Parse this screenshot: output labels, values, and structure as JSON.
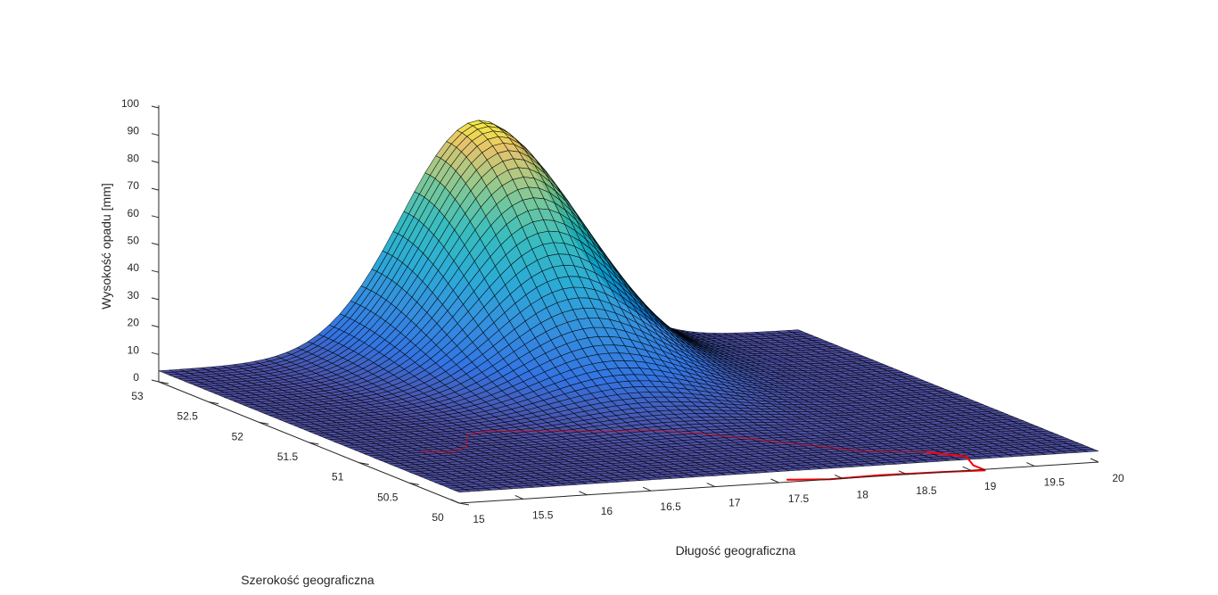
{
  "chart_data": {
    "type": "surface",
    "title": "",
    "xlabel": "Długość geograficzna",
    "ylabel": "Szerokość geograficzna",
    "zlabel": "Wysokość opadu [mm]",
    "xlim": [
      15,
      20
    ],
    "ylim": [
      50,
      53
    ],
    "zlim": [
      0,
      100
    ],
    "x_ticks": [
      "15",
      "15.5",
      "16",
      "16.5",
      "17",
      "17.5",
      "18",
      "18.5",
      "19",
      "19.5",
      "20"
    ],
    "y_ticks": [
      "50",
      "50.5",
      "51",
      "51.5",
      "52",
      "52.5",
      "53"
    ],
    "z_ticks": [
      "0",
      "10",
      "20",
      "30",
      "40",
      "50",
      "60",
      "70",
      "80",
      "90",
      "100"
    ],
    "surface": {
      "peak": {
        "x": 17.5,
        "y": 53,
        "z": 88
      },
      "base_level_mm": 4,
      "grid_points": 60,
      "colormap": "parula",
      "edge_color": "#000000",
      "face_alpha": 0.85
    },
    "boundary_line": {
      "color": "#ff0000",
      "description_points_lonlat": [
        [
          17.6,
          50.05
        ],
        [
          17.9,
          50.0
        ],
        [
          18.3,
          50.02
        ],
        [
          18.8,
          50.0
        ],
        [
          19.1,
          49.98
        ],
        [
          19.1,
          50.1
        ],
        [
          19.2,
          50.3
        ],
        [
          19.0,
          50.45
        ],
        [
          18.6,
          50.55
        ],
        [
          18.4,
          50.7
        ],
        [
          18.2,
          50.85
        ],
        [
          18.0,
          51.0
        ],
        [
          17.8,
          51.15
        ],
        [
          17.5,
          51.3
        ],
        [
          17.2,
          51.32
        ],
        [
          16.9,
          51.4
        ],
        [
          16.6,
          51.45
        ],
        [
          16.4,
          51.5
        ],
        [
          16.2,
          51.45
        ],
        [
          16.0,
          51.2
        ],
        [
          15.8,
          51.1
        ],
        [
          15.6,
          51.15
        ]
      ]
    },
    "grid": false,
    "legend": "none"
  }
}
